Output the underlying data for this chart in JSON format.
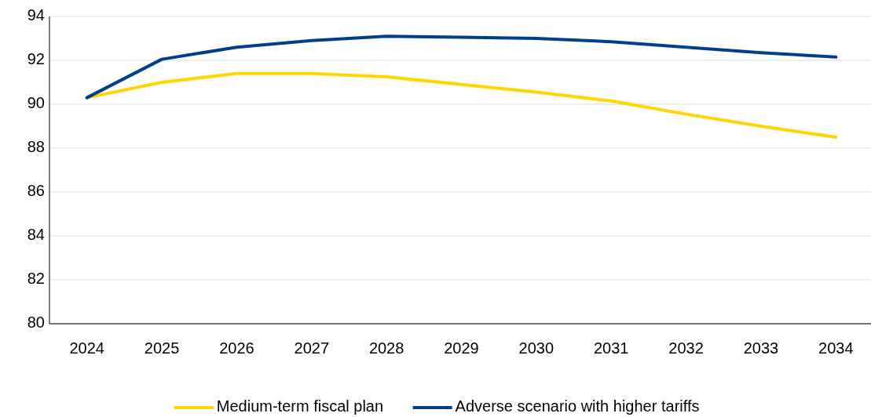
{
  "chart_data": {
    "type": "line",
    "categories": [
      "2024",
      "2025",
      "2026",
      "2027",
      "2028",
      "2029",
      "2030",
      "2031",
      "2032",
      "2033",
      "2034"
    ],
    "series": [
      {
        "name": "Medium-term fiscal plan",
        "color": "#ffd700",
        "values": [
          90.3,
          91.0,
          91.4,
          91.4,
          91.25,
          90.9,
          90.55,
          90.15,
          89.55,
          89.0,
          88.5
        ]
      },
      {
        "name": "Adverse scenario with higher tariffs",
        "color": "#003f8c",
        "values": [
          90.3,
          92.05,
          92.6,
          92.9,
          93.1,
          93.05,
          93.0,
          92.85,
          92.6,
          92.35,
          92.15
        ]
      }
    ],
    "ylim": [
      80,
      94
    ],
    "yticks": [
      80,
      82,
      84,
      86,
      88,
      90,
      92,
      94
    ],
    "grid": "y",
    "legend": "bottom",
    "marker": "none",
    "line_style": "solid"
  }
}
